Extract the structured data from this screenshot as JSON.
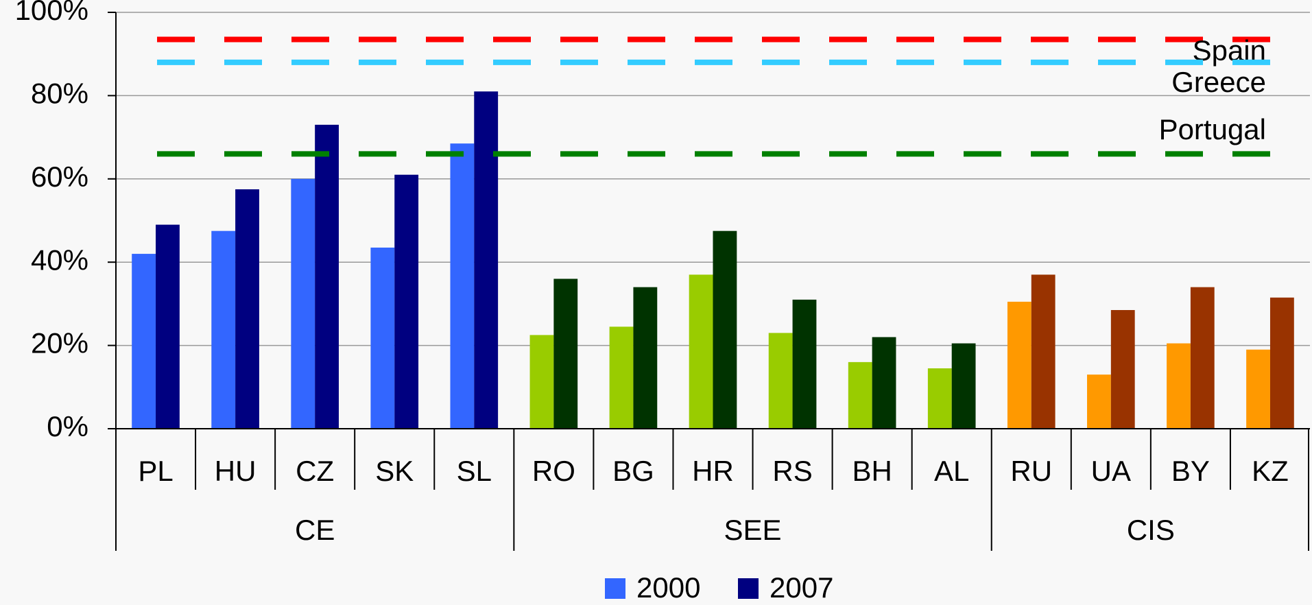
{
  "chart_data": {
    "type": "bar",
    "groups": [
      {
        "name": "CE",
        "categories": [
          "PL",
          "HU",
          "CZ",
          "SK",
          "SL"
        ],
        "colors": [
          "#3366ff",
          "#000080"
        ]
      },
      {
        "name": "SEE",
        "categories": [
          "RO",
          "BG",
          "HR",
          "RS",
          "BH",
          "AL"
        ],
        "colors": [
          "#99cc00",
          "#003300"
        ]
      },
      {
        "name": "CIS",
        "categories": [
          "RU",
          "UA",
          "BY",
          "KZ"
        ],
        "colors": [
          "#ff9900",
          "#993300"
        ]
      }
    ],
    "series": [
      {
        "name": "2000",
        "color": "#3366ff",
        "values": [
          42,
          47.5,
          60,
          43.5,
          68.5,
          22.5,
          24.5,
          37,
          23,
          16,
          14.5,
          30.5,
          13,
          20.5,
          19
        ]
      },
      {
        "name": "2007",
        "color": "#000080",
        "values": [
          49,
          57.5,
          73,
          61,
          81,
          36,
          34,
          47.5,
          31,
          22,
          20.5,
          37,
          28.5,
          34,
          31.5
        ]
      }
    ],
    "reference_lines": [
      {
        "name": "Spain",
        "value": 93.5,
        "color": "#ff0000"
      },
      {
        "name": "Greece",
        "value": 88,
        "color": "#33ccff"
      },
      {
        "name": "Portugal",
        "value": 66,
        "color": "#008000"
      }
    ],
    "ylim": [
      0,
      100
    ],
    "yticks": [
      {
        "value": 0,
        "label": "0%"
      },
      {
        "value": 20,
        "label": "20%"
      },
      {
        "value": 40,
        "label": "40%"
      },
      {
        "value": 60,
        "label": "60%"
      },
      {
        "value": 80,
        "label": "80%"
      },
      {
        "value": 100,
        "label": "100%"
      }
    ],
    "grid": true,
    "legend": "bottom"
  }
}
